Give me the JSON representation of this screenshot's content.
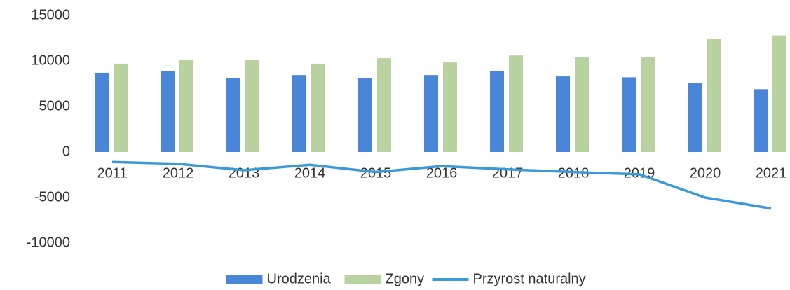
{
  "chart_data": {
    "type": "bar",
    "categories": [
      "2011",
      "2012",
      "2013",
      "2014",
      "2015",
      "2016",
      "2017",
      "2018",
      "2019",
      "2020",
      "2021"
    ],
    "series": [
      {
        "name": "Urodzenia",
        "color": "#4a86d8",
        "type": "bar",
        "values": [
          8700,
          8900,
          8150,
          8450,
          8150,
          8450,
          8850,
          8300,
          8200,
          7600,
          6900
        ]
      },
      {
        "name": "Zgony",
        "color": "#b9d3a0",
        "type": "bar",
        "values": [
          9700,
          10100,
          10100,
          9700,
          10300,
          9850,
          10600,
          10450,
          10400,
          12400,
          12800
        ]
      },
      {
        "name": "Przyrost naturalny",
        "color": "#3a9ad9",
        "type": "line",
        "values": [
          -1100,
          -1300,
          -2000,
          -1400,
          -2200,
          -1550,
          -1900,
          -2200,
          -2450,
          -5000,
          -6200
        ]
      }
    ],
    "ylim": [
      -10000,
      15000
    ],
    "yticks": [
      -10000,
      -5000,
      0,
      5000,
      10000,
      15000
    ],
    "grid": false,
    "legend": "bottom"
  }
}
